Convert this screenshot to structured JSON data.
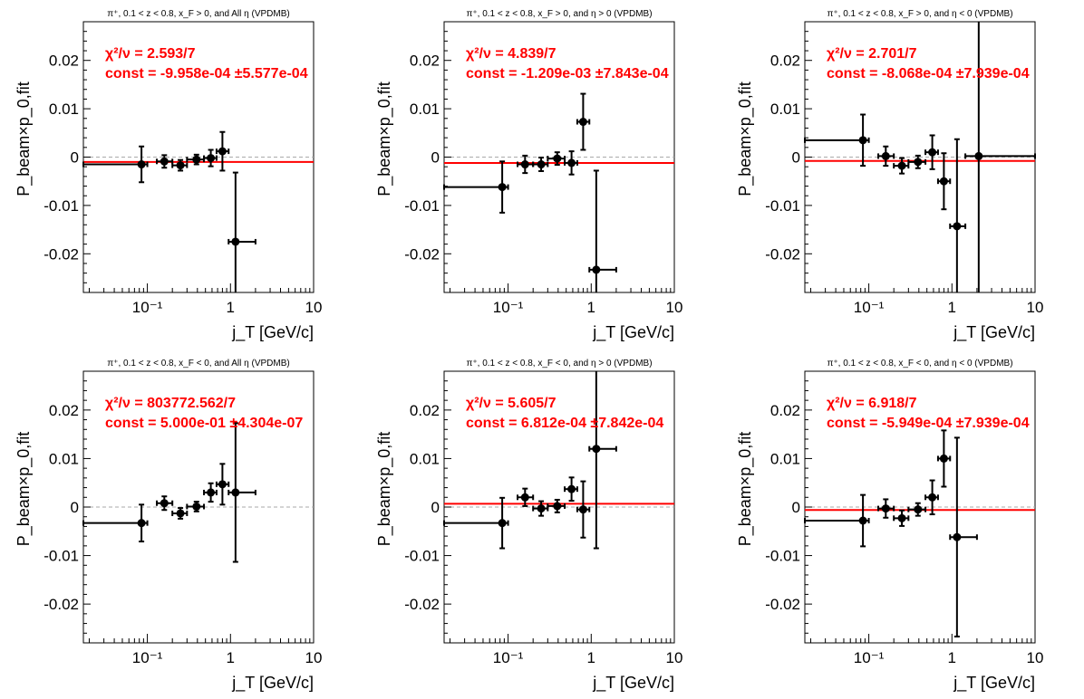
{
  "chart_data": [
    {
      "type": "scatter",
      "title": "π⁺, 0.1 < z < 0.8, x_F > 0, and All  η (VPDMB)",
      "xlabel": "j_T [GeV/c]",
      "ylabel": "P_beam×p_0,fit",
      "xscale": "log",
      "xlim": [
        0.017,
        10
      ],
      "ylim": [
        -0.028,
        0.028
      ],
      "yticks": [
        -0.02,
        -0.01,
        0,
        0.01,
        0.02
      ],
      "ytick_labels": [
        "-0.02",
        "-0.01",
        "0",
        "0.01",
        "0.02"
      ],
      "xtick_labels": [
        "10⁻¹",
        "1",
        "10"
      ],
      "chi2_label": "χ²/ν = 2.593/7",
      "const_label": "const = -9.958e-04  ±5.577e-04",
      "fit_value": -0.000996,
      "fit_line": "red",
      "points": [
        {
          "x": 0.085,
          "xlo": 0.017,
          "xhi": 0.1,
          "y": -0.0015,
          "ey": 0.0037
        },
        {
          "x": 0.16,
          "xlo": 0.13,
          "xhi": 0.2,
          "y": -0.0009,
          "ey": 0.0013
        },
        {
          "x": 0.25,
          "xlo": 0.2,
          "xhi": 0.3,
          "y": -0.0017,
          "ey": 0.0011
        },
        {
          "x": 0.39,
          "xlo": 0.3,
          "xhi": 0.48,
          "y": -0.0005,
          "ey": 0.001
        },
        {
          "x": 0.58,
          "xlo": 0.48,
          "xhi": 0.68,
          "y": -0.0002,
          "ey": 0.0017
        },
        {
          "x": 0.8,
          "xlo": 0.68,
          "xhi": 0.95,
          "y": 0.0012,
          "ey": 0.004
        },
        {
          "x": 1.15,
          "xlo": 0.95,
          "xhi": 2.0,
          "y": -0.0175,
          "ey": 0.0143
        }
      ]
    },
    {
      "type": "scatter",
      "title": "π⁺, 0.1 < z < 0.8, x_F > 0, and η > 0 (VPDMB)",
      "xlabel": "j_T [GeV/c]",
      "ylabel": "P_beam×p_0,fit",
      "xscale": "log",
      "xlim": [
        0.017,
        10
      ],
      "ylim": [
        -0.028,
        0.028
      ],
      "yticks": [
        -0.02,
        -0.01,
        0,
        0.01,
        0.02
      ],
      "ytick_labels": [
        "-0.02",
        "-0.01",
        "0",
        "0.01",
        "0.02"
      ],
      "xtick_labels": [
        "10⁻¹",
        "1",
        "10"
      ],
      "chi2_label": "χ²/ν = 4.839/7",
      "const_label": "const = -1.209e-03  ±7.843e-04",
      "fit_value": -0.001209,
      "fit_line": "red",
      "points": [
        {
          "x": 0.085,
          "xlo": 0.017,
          "xhi": 0.1,
          "y": -0.0062,
          "ey": 0.0053
        },
        {
          "x": 0.16,
          "xlo": 0.13,
          "xhi": 0.2,
          "y": -0.0015,
          "ey": 0.0018
        },
        {
          "x": 0.25,
          "xlo": 0.2,
          "xhi": 0.3,
          "y": -0.0015,
          "ey": 0.0014
        },
        {
          "x": 0.39,
          "xlo": 0.3,
          "xhi": 0.48,
          "y": -0.0003,
          "ey": 0.0013
        },
        {
          "x": 0.58,
          "xlo": 0.48,
          "xhi": 0.68,
          "y": -0.0012,
          "ey": 0.0024
        },
        {
          "x": 0.8,
          "xlo": 0.68,
          "xhi": 0.95,
          "y": 0.0073,
          "ey": 0.0058
        },
        {
          "x": 1.15,
          "xlo": 0.95,
          "xhi": 2.0,
          "y": -0.0233,
          "ey": 0.0205
        }
      ]
    },
    {
      "type": "scatter",
      "title": "π⁺, 0.1 < z < 0.8, x_F > 0, and η < 0 (VPDMB)",
      "xlabel": "j_T [GeV/c]",
      "ylabel": "P_beam×p_0,fit",
      "xscale": "log",
      "xlim": [
        0.017,
        10
      ],
      "ylim": [
        -0.028,
        0.028
      ],
      "yticks": [
        -0.02,
        -0.01,
        0,
        0.01,
        0.02
      ],
      "ytick_labels": [
        "-0.02",
        "-0.01",
        "0",
        "0.01",
        "0.02"
      ],
      "xtick_labels": [
        "10⁻¹",
        "1",
        "10"
      ],
      "chi2_label": "χ²/ν = 2.701/7",
      "const_label": "const = -8.068e-04  ±7.939e-04",
      "fit_value": -0.000807,
      "fit_line": "red",
      "points": [
        {
          "x": 0.085,
          "xlo": 0.017,
          "xhi": 0.1,
          "y": 0.0035,
          "ey": 0.0053
        },
        {
          "x": 0.16,
          "xlo": 0.13,
          "xhi": 0.2,
          "y": 0.0002,
          "ey": 0.002
        },
        {
          "x": 0.25,
          "xlo": 0.2,
          "xhi": 0.3,
          "y": -0.0018,
          "ey": 0.0016
        },
        {
          "x": 0.39,
          "xlo": 0.3,
          "xhi": 0.48,
          "y": -0.001,
          "ey": 0.0013
        },
        {
          "x": 0.58,
          "xlo": 0.48,
          "xhi": 0.68,
          "y": 0.001,
          "ey": 0.0035
        },
        {
          "x": 0.8,
          "xlo": 0.68,
          "xhi": 0.95,
          "y": -0.005,
          "ey": 0.0058
        },
        {
          "x": 1.15,
          "xlo": 0.95,
          "xhi": 1.45,
          "y": -0.0143,
          "ey": 0.018
        },
        {
          "x": 2.1,
          "xlo": 1.45,
          "xhi": 10,
          "y": 0.0002,
          "ey": 0.03
        }
      ]
    },
    {
      "type": "scatter",
      "title": "π⁺, 0.1 < z < 0.8, x_F < 0, and All  η (VPDMB)",
      "xlabel": "j_T [GeV/c]",
      "ylabel": "P_beam×p_0,fit",
      "xscale": "log",
      "xlim": [
        0.017,
        10
      ],
      "ylim": [
        -0.028,
        0.028
      ],
      "yticks": [
        -0.02,
        -0.01,
        0,
        0.01,
        0.02
      ],
      "ytick_labels": [
        "-0.02",
        "-0.01",
        "0",
        "0.01",
        "0.02"
      ],
      "xtick_labels": [
        "10⁻¹",
        "1",
        "10"
      ],
      "chi2_label": "χ²/ν = 803772.562/7",
      "const_label": "const = 5.000e-01  ±4.304e-07",
      "fit_value": 0.5,
      "fit_line": "none",
      "points": [
        {
          "x": 0.085,
          "xlo": 0.017,
          "xhi": 0.1,
          "y": -0.0033,
          "ey": 0.0038
        },
        {
          "x": 0.16,
          "xlo": 0.13,
          "xhi": 0.2,
          "y": 0.0008,
          "ey": 0.0014
        },
        {
          "x": 0.25,
          "xlo": 0.2,
          "xhi": 0.3,
          "y": -0.0013,
          "ey": 0.0011
        },
        {
          "x": 0.39,
          "xlo": 0.3,
          "xhi": 0.48,
          "y": 0.0001,
          "ey": 0.001
        },
        {
          "x": 0.58,
          "xlo": 0.48,
          "xhi": 0.68,
          "y": 0.003,
          "ey": 0.0019
        },
        {
          "x": 0.8,
          "xlo": 0.68,
          "xhi": 0.95,
          "y": 0.0047,
          "ey": 0.0042
        },
        {
          "x": 1.15,
          "xlo": 0.95,
          "xhi": 2.0,
          "y": 0.003,
          "ey": 0.0143
        }
      ]
    },
    {
      "type": "scatter",
      "title": "π⁺, 0.1 < z < 0.8, x_F < 0, and η > 0 (VPDMB)",
      "xlabel": "j_T [GeV/c]",
      "ylabel": "P_beam×p_0,fit",
      "xscale": "log",
      "xlim": [
        0.017,
        10
      ],
      "ylim": [
        -0.028,
        0.028
      ],
      "yticks": [
        -0.02,
        -0.01,
        0,
        0.01,
        0.02
      ],
      "ytick_labels": [
        "-0.02",
        "-0.01",
        "0",
        "0.01",
        "0.02"
      ],
      "xtick_labels": [
        "10⁻¹",
        "1",
        "10"
      ],
      "chi2_label": "χ²/ν = 5.605/7",
      "const_label": "const = 6.812e-04  ±7.842e-04",
      "fit_value": 0.000681,
      "fit_line": "red",
      "points": [
        {
          "x": 0.085,
          "xlo": 0.017,
          "xhi": 0.1,
          "y": -0.0033,
          "ey": 0.0052
        },
        {
          "x": 0.16,
          "xlo": 0.13,
          "xhi": 0.2,
          "y": 0.002,
          "ey": 0.0018
        },
        {
          "x": 0.25,
          "xlo": 0.2,
          "xhi": 0.3,
          "y": -0.0003,
          "ey": 0.0015
        },
        {
          "x": 0.39,
          "xlo": 0.3,
          "xhi": 0.48,
          "y": 0.0002,
          "ey": 0.0013
        },
        {
          "x": 0.58,
          "xlo": 0.48,
          "xhi": 0.68,
          "y": 0.0037,
          "ey": 0.0024
        },
        {
          "x": 0.8,
          "xlo": 0.68,
          "xhi": 0.95,
          "y": -0.0005,
          "ey": 0.0058
        },
        {
          "x": 1.15,
          "xlo": 0.95,
          "xhi": 2.0,
          "y": 0.012,
          "ey": 0.0205
        }
      ]
    },
    {
      "type": "scatter",
      "title": "π⁺, 0.1 < z < 0.8, x_F < 0, and η < 0 (VPDMB)",
      "xlabel": "j_T [GeV/c]",
      "ylabel": "P_beam×p_0,fit",
      "xscale": "log",
      "xlim": [
        0.017,
        10
      ],
      "ylim": [
        -0.028,
        0.028
      ],
      "yticks": [
        -0.02,
        -0.01,
        0,
        0.01,
        0.02
      ],
      "ytick_labels": [
        "-0.02",
        "-0.01",
        "0",
        "0.01",
        "0.02"
      ],
      "xtick_labels": [
        "10⁻¹",
        "1",
        "10"
      ],
      "chi2_label": "χ²/ν = 6.918/7",
      "const_label": "const = -5.949e-04  ±7.939e-04",
      "fit_value": -0.000595,
      "fit_line": "red",
      "points": [
        {
          "x": 0.085,
          "xlo": 0.017,
          "xhi": 0.1,
          "y": -0.0028,
          "ey": 0.0053
        },
        {
          "x": 0.16,
          "xlo": 0.13,
          "xhi": 0.2,
          "y": -0.0003,
          "ey": 0.0019
        },
        {
          "x": 0.25,
          "xlo": 0.2,
          "xhi": 0.3,
          "y": -0.0023,
          "ey": 0.0016
        },
        {
          "x": 0.39,
          "xlo": 0.3,
          "xhi": 0.48,
          "y": -0.0005,
          "ey": 0.0013
        },
        {
          "x": 0.58,
          "xlo": 0.48,
          "xhi": 0.68,
          "y": 0.002,
          "ey": 0.0035
        },
        {
          "x": 0.8,
          "xlo": 0.68,
          "xhi": 0.95,
          "y": 0.01,
          "ey": 0.0058
        },
        {
          "x": 1.15,
          "xlo": 0.95,
          "xhi": 2.0,
          "y": -0.0062,
          "ey": 0.0205
        }
      ]
    }
  ]
}
